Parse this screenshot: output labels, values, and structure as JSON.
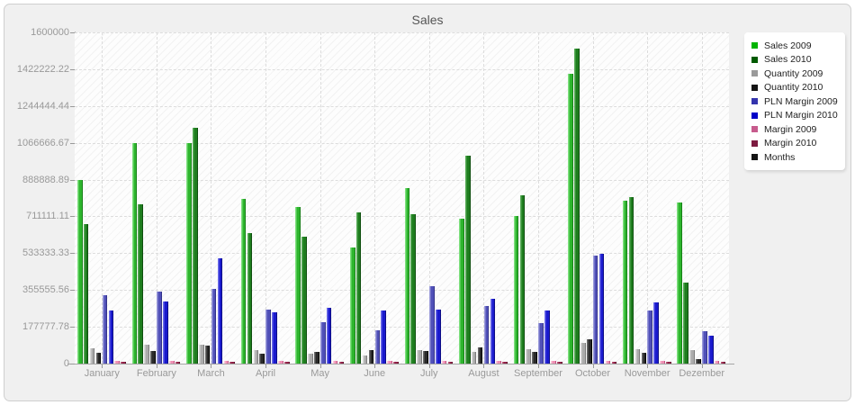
{
  "title": "Sales",
  "y_axis": {
    "tick_labels": [
      "0",
      "177777.78",
      "355555.56",
      "533333.33",
      "711111.11",
      "888888.89",
      "1066666.67",
      "1244444.44",
      "1422222.22",
      "1600000"
    ],
    "max": 1600000
  },
  "legend": {
    "position": "right",
    "items": [
      {
        "label": "Sales 2009",
        "color": "#00b400"
      },
      {
        "label": "Sales 2010",
        "color": "#005a00"
      },
      {
        "label": "Quantity 2009",
        "color": "#9a9a9a"
      },
      {
        "label": "Quantity 2010",
        "color": "#141414"
      },
      {
        "label": "PLN Margin 2009",
        "color": "#3434ad"
      },
      {
        "label": "PLN Margin 2010",
        "color": "#0000c8"
      },
      {
        "label": "Margin 2009",
        "color": "#c75b8d"
      },
      {
        "label": "Margin 2010",
        "color": "#7d1b40"
      },
      {
        "label": "Months",
        "color": "#141414"
      }
    ]
  },
  "chart_data": {
    "type": "bar",
    "title": "Sales",
    "xlabel": "",
    "ylabel": "",
    "ylim": [
      0,
      1600000
    ],
    "grid": "dashed horizontal at y-ticks, dashed vertical at month centers, hatched plot background",
    "legend_position": "right",
    "categories": [
      "January",
      "February",
      "March",
      "April",
      "May",
      "June",
      "July",
      "August",
      "September",
      "October",
      "November",
      "Dezember"
    ],
    "series": [
      {
        "name": "Sales 2009",
        "color": "#2db52d",
        "light": "#7fe07f",
        "dark": "#178017",
        "values": [
          885000,
          1065000,
          1065000,
          795000,
          755000,
          560000,
          848000,
          700000,
          715000,
          1400000,
          785000,
          780000
        ]
      },
      {
        "name": "Sales 2010",
        "color": "#1e7d1e",
        "light": "#56aa56",
        "dark": "#0f4f0f",
        "values": [
          675000,
          770000,
          1140000,
          630000,
          612000,
          730000,
          720000,
          1005000,
          815000,
          1520000,
          805000,
          390000
        ]
      },
      {
        "name": "Quantity 2009",
        "color": "#ababab",
        "light": "#d8d8d8",
        "dark": "#7c7c7c",
        "values": [
          72000,
          92000,
          92000,
          65000,
          46000,
          39000,
          64000,
          55000,
          69000,
          100000,
          70000,
          64000
        ]
      },
      {
        "name": "Quantity 2010",
        "color": "#2a2a2a",
        "light": "#6a6a6a",
        "dark": "#000000",
        "values": [
          51000,
          61000,
          85000,
          50000,
          56000,
          65000,
          61000,
          80000,
          58000,
          117000,
          53000,
          20000
        ]
      },
      {
        "name": "PLN Margin 2009",
        "color": "#5050b8",
        "light": "#9a9ada",
        "dark": "#33338a",
        "values": [
          330000,
          350000,
          360000,
          260000,
          200000,
          160000,
          375000,
          280000,
          195000,
          520000,
          256000,
          158000
        ]
      },
      {
        "name": "PLN Margin 2010",
        "color": "#1a1ace",
        "light": "#6d6de9",
        "dark": "#0d0d85",
        "values": [
          255000,
          300000,
          510000,
          250000,
          270000,
          255000,
          263000,
          315000,
          256000,
          530000,
          297000,
          136000
        ]
      },
      {
        "name": "Margin 2009",
        "color": "#ee90b4",
        "light": "#ffc6da",
        "dark": "#c25482",
        "values": [
          13000,
          13000,
          13000,
          12000,
          12000,
          12000,
          12000,
          13000,
          12000,
          13000,
          12000,
          12000
        ]
      },
      {
        "name": "Margin 2010",
        "color": "#8e2046",
        "light": "#b95576",
        "dark": "#5e0f2c",
        "values": [
          9000,
          9000,
          9000,
          8000,
          8000,
          9000,
          8000,
          9000,
          8000,
          9000,
          8000,
          8000
        ]
      },
      {
        "name": "Months",
        "color": "#141414",
        "light": "#555555",
        "dark": "#000000",
        "values": [
          0,
          0,
          0,
          0,
          0,
          0,
          0,
          0,
          0,
          0,
          0,
          0
        ]
      }
    ]
  }
}
